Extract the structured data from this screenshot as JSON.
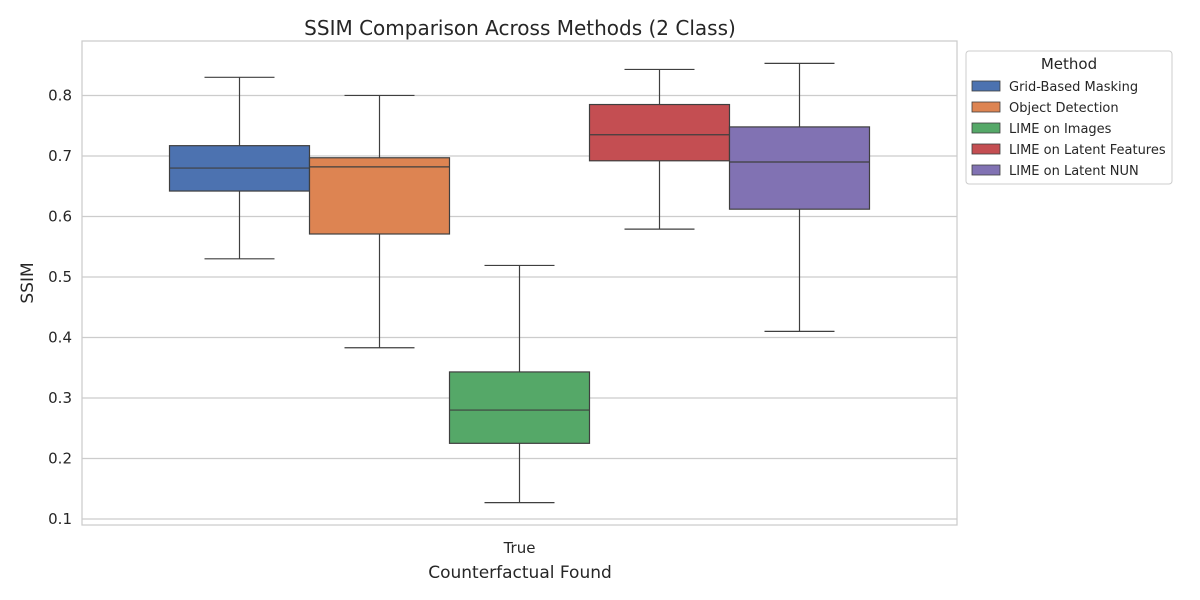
{
  "chart_data": {
    "type": "box",
    "title": "SSIM Comparison Across Methods (2 Class)",
    "xlabel": "Counterfactual Found",
    "ylabel": "SSIM",
    "categories": [
      "True"
    ],
    "ylim": [
      0.09,
      0.89
    ],
    "yticks": [
      0.1,
      0.2,
      0.3,
      0.4,
      0.5,
      0.6,
      0.7,
      0.8
    ],
    "grid": true,
    "legend": {
      "title": "Method",
      "placement": "outside-top-right"
    },
    "series": [
      {
        "name": "Grid-Based Masking",
        "color": "#4c72b0",
        "whisker_low": 0.53,
        "q1": 0.642,
        "median": 0.68,
        "q3": 0.717,
        "whisker_high": 0.83
      },
      {
        "name": "Object Detection",
        "color": "#dd8452",
        "whisker_low": 0.383,
        "q1": 0.571,
        "median": 0.682,
        "q3": 0.697,
        "whisker_high": 0.8
      },
      {
        "name": "LIME on Images",
        "color": "#55a868",
        "whisker_low": 0.127,
        "q1": 0.225,
        "median": 0.28,
        "q3": 0.343,
        "whisker_high": 0.519
      },
      {
        "name": "LIME on Latent Features",
        "color": "#c44e52",
        "whisker_low": 0.579,
        "q1": 0.692,
        "median": 0.735,
        "q3": 0.785,
        "whisker_high": 0.843
      },
      {
        "name": "LIME on Latent NUN",
        "color": "#8172b3",
        "whisker_low": 0.41,
        "q1": 0.612,
        "median": 0.69,
        "q3": 0.748,
        "whisker_high": 0.853
      }
    ]
  }
}
